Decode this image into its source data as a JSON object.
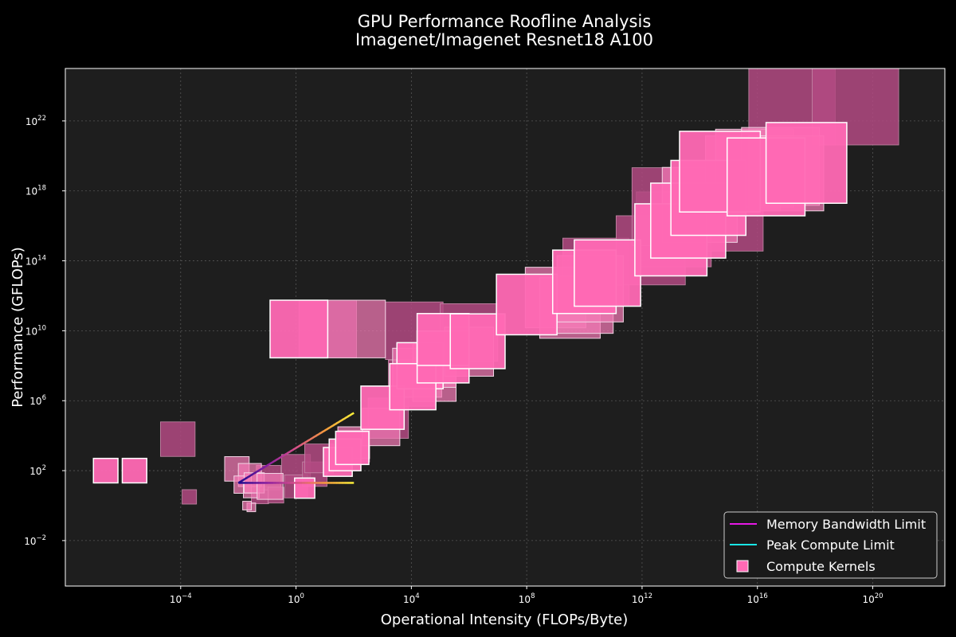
{
  "chart_data": {
    "type": "scatter",
    "title": "GPU Performance Roofline Analysis",
    "subtitle": "Imagenet/Imagenet Resnet18 A100",
    "xlabel": "Operational Intensity (FLOPs/Byte)",
    "ylabel": "Performance (GFLOPs)",
    "x_scale": "log",
    "y_scale": "log",
    "xlim_log10": [
      -8.0,
      22.5
    ],
    "ylim_log10": [
      -4.6,
      25.0
    ],
    "x_ticks": [
      {
        "base": "10",
        "exp": "−4",
        "value_log10": -4
      },
      {
        "base": "10",
        "exp": "0",
        "value_log10": 0
      },
      {
        "base": "10",
        "exp": "4",
        "value_log10": 4
      },
      {
        "base": "10",
        "exp": "8",
        "value_log10": 8
      },
      {
        "base": "10",
        "exp": "12",
        "value_log10": 12
      },
      {
        "base": "10",
        "exp": "16",
        "value_log10": 16
      },
      {
        "base": "10",
        "exp": "20",
        "value_log10": 20
      }
    ],
    "y_ticks": [
      {
        "base": "10",
        "exp": "−2",
        "value_log10": -2
      },
      {
        "base": "10",
        "exp": "2",
        "value_log10": 2
      },
      {
        "base": "10",
        "exp": "6",
        "value_log10": 6
      },
      {
        "base": "10",
        "exp": "10",
        "value_log10": 10
      },
      {
        "base": "10",
        "exp": "14",
        "value_log10": 14
      },
      {
        "base": "10",
        "exp": "18",
        "value_log10": 18
      },
      {
        "base": "10",
        "exp": "22",
        "value_log10": 22
      }
    ],
    "grid": true,
    "legend_position": "lower-right",
    "legend": [
      {
        "label": "Memory Bandwidth Limit",
        "kind": "line",
        "color": "#e619e6"
      },
      {
        "label": "Peak Compute Limit",
        "kind": "line",
        "color": "#19e6e6"
      },
      {
        "label": "Compute Kernels",
        "kind": "marker",
        "color": "#ff69b4"
      }
    ],
    "roofline": {
      "memory_bandwidth": {
        "x_log10": [
          -2.0,
          2.0
        ],
        "y_log10": [
          1.3,
          5.3
        ]
      },
      "peak_compute": {
        "x_log10": [
          -2.0,
          2.0
        ],
        "y_log10": [
          1.3,
          1.3
        ]
      },
      "colormap": [
        "#1a0a8c",
        "#8a1ea0",
        "#d8508a",
        "#f59a3c",
        "#f8ef3a"
      ]
    },
    "kernel_color": "#ff69b4",
    "series": [
      {
        "points": [
          {
            "x": -6.6,
            "y": 2.0,
            "s": 0.85,
            "shade": "bright"
          },
          {
            "x": -5.6,
            "y": 2.0,
            "s": 0.85,
            "shade": "bright"
          },
          {
            "x": -4.1,
            "y": 3.8,
            "s": 1.2,
            "shade": "dark"
          },
          {
            "x": -3.7,
            "y": 0.5,
            "s": 0.5,
            "shade": "dark"
          },
          {
            "x": -2.05,
            "y": 2.1,
            "s": 0.85,
            "shade": "light"
          },
          {
            "x": -1.6,
            "y": 1.75,
            "s": 0.8,
            "shade": "light"
          },
          {
            "x": -1.85,
            "y": 1.2,
            "s": 0.6,
            "shade": "light"
          },
          {
            "x": -1.55,
            "y": 0.9,
            "s": 0.55,
            "shade": "light"
          },
          {
            "x": -1.55,
            "y": -0.1,
            "s": 0.3,
            "shade": "light"
          },
          {
            "x": -1.7,
            "y": 0.0,
            "s": 0.3,
            "shade": "light"
          },
          {
            "x": -1.25,
            "y": 0.6,
            "s": 0.6,
            "shade": "dark"
          },
          {
            "x": -1.45,
            "y": 1.3,
            "s": 0.7,
            "shade": "light"
          },
          {
            "x": -0.95,
            "y": 1.6,
            "s": 0.85,
            "shade": "dark"
          },
          {
            "x": -0.9,
            "y": 1.1,
            "s": 0.9,
            "shade": "light"
          },
          {
            "x": -0.7,
            "y": 0.6,
            "s": 0.55,
            "shade": "dark"
          },
          {
            "x": 0.0,
            "y": 2.1,
            "s": 1.0,
            "shade": "dark"
          },
          {
            "x": 0.0,
            "y": 1.1,
            "s": 0.8,
            "shade": "dark"
          },
          {
            "x": 0.3,
            "y": 1.0,
            "s": 0.7,
            "shade": "bright"
          },
          {
            "x": 0.65,
            "y": 1.8,
            "s": 0.85,
            "shade": "dark"
          },
          {
            "x": 0.8,
            "y": 2.7,
            "s": 1.0,
            "shade": "dark"
          },
          {
            "x": 1.45,
            "y": 2.5,
            "s": 1.0,
            "shade": "bright"
          },
          {
            "x": 1.7,
            "y": 2.9,
            "s": 1.1,
            "shade": "bright"
          },
          {
            "x": 1.95,
            "y": 3.3,
            "s": 1.15,
            "shade": "bright"
          },
          {
            "x": 2.0,
            "y": 3.6,
            "s": 1.1,
            "shade": "light"
          },
          {
            "x": 2.0,
            "y": 3.4,
            "s": 1.1,
            "shade": "dark"
          },
          {
            "x": 0.1,
            "y": 10.1,
            "s": 2.0,
            "shade": "bright"
          },
          {
            "x": 1.1,
            "y": 10.1,
            "s": 2.0,
            "shade": "dark"
          },
          {
            "x": 2.1,
            "y": 10.1,
            "s": 2.0,
            "shade": "light"
          },
          {
            "x": 2.95,
            "y": 4.5,
            "s": 1.3,
            "shade": "light"
          },
          {
            "x": 3.0,
            "y": 5.6,
            "s": 1.5,
            "shade": "bright"
          },
          {
            "x": 3.2,
            "y": 5.0,
            "s": 1.4,
            "shade": "dark"
          },
          {
            "x": 4.0,
            "y": 7.0,
            "s": 1.6,
            "shade": "dark"
          },
          {
            "x": 4.2,
            "y": 7.6,
            "s": 1.7,
            "shade": "light"
          },
          {
            "x": 4.3,
            "y": 8.0,
            "s": 1.6,
            "shade": "bright"
          },
          {
            "x": 4.05,
            "y": 6.8,
            "s": 1.6,
            "shade": "bright"
          },
          {
            "x": 4.8,
            "y": 7.2,
            "s": 1.5,
            "shade": "light"
          },
          {
            "x": 4.8,
            "y": 8.0,
            "s": 1.5,
            "shade": "light"
          },
          {
            "x": 5.1,
            "y": 8.5,
            "s": 1.8,
            "shade": "bright"
          },
          {
            "x": 4.1,
            "y": 10.0,
            "s": 2.0,
            "shade": "dark"
          },
          {
            "x": 5.1,
            "y": 9.5,
            "s": 1.8,
            "shade": "bright"
          },
          {
            "x": 6.0,
            "y": 8.8,
            "s": 1.7,
            "shade": "light"
          },
          {
            "x": 6.0,
            "y": 9.9,
            "s": 2.0,
            "shade": "dark"
          },
          {
            "x": 6.3,
            "y": 9.4,
            "s": 1.9,
            "shade": "bright"
          },
          {
            "x": 8.0,
            "y": 11.5,
            "s": 2.1,
            "shade": "bright"
          },
          {
            "x": 9.0,
            "y": 11.9,
            "s": 2.1,
            "shade": "light"
          },
          {
            "x": 9.5,
            "y": 11.3,
            "s": 2.1,
            "shade": "light"
          },
          {
            "x": 10.0,
            "y": 11.5,
            "s": 2.0,
            "shade": "light"
          },
          {
            "x": 10.4,
            "y": 13.4,
            "s": 2.3,
            "shade": "dark"
          },
          {
            "x": 10.2,
            "y": 12.4,
            "s": 2.3,
            "shade": "light"
          },
          {
            "x": 10.0,
            "y": 12.8,
            "s": 2.2,
            "shade": "bright"
          },
          {
            "x": 10.8,
            "y": 13.3,
            "s": 2.3,
            "shade": "bright"
          },
          {
            "x": 12.3,
            "y": 14.6,
            "s": 2.4,
            "shade": "dark"
          },
          {
            "x": 13.0,
            "y": 15.2,
            "s": 2.5,
            "shade": "bright"
          },
          {
            "x": 13.1,
            "y": 15.8,
            "s": 2.6,
            "shade": "dark"
          },
          {
            "x": 13.0,
            "y": 17.1,
            "s": 2.7,
            "shade": "dark"
          },
          {
            "x": 13.6,
            "y": 16.3,
            "s": 2.6,
            "shade": "bright"
          },
          {
            "x": 14.0,
            "y": 17.2,
            "s": 2.6,
            "shade": "light"
          },
          {
            "x": 14.9,
            "y": 16.7,
            "s": 2.6,
            "shade": "dark"
          },
          {
            "x": 14.3,
            "y": 17.6,
            "s": 2.6,
            "shade": "bright"
          },
          {
            "x": 14.7,
            "y": 19.1,
            "s": 2.8,
            "shade": "bright"
          },
          {
            "x": 15.5,
            "y": 19.0,
            "s": 2.6,
            "shade": "light"
          },
          {
            "x": 15.9,
            "y": 19.3,
            "s": 2.7,
            "shade": "light"
          },
          {
            "x": 16.3,
            "y": 18.8,
            "s": 2.7,
            "shade": "bright"
          },
          {
            "x": 16.8,
            "y": 19.4,
            "s": 2.7,
            "shade": "light"
          },
          {
            "x": 17.0,
            "y": 19.0,
            "s": 2.6,
            "shade": "light"
          },
          {
            "x": 17.7,
            "y": 19.6,
            "s": 2.8,
            "shade": "bright"
          },
          {
            "x": 17.2,
            "y": 23.1,
            "s": 3.0,
            "shade": "dark"
          },
          {
            "x": 19.4,
            "y": 23.1,
            "s": 3.0,
            "shade": "dark"
          }
        ]
      }
    ]
  }
}
